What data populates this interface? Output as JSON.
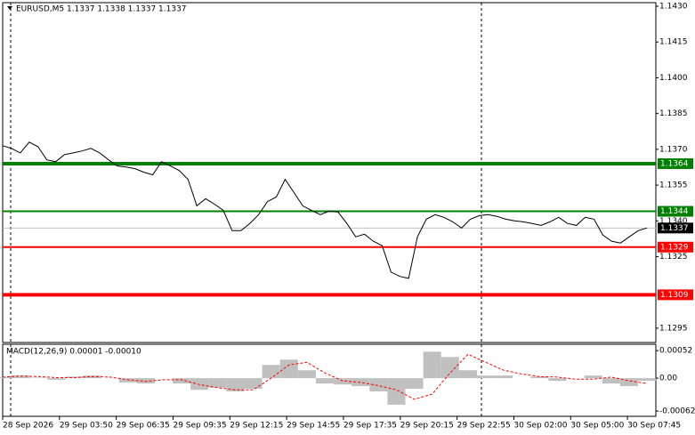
{
  "chart_data": [
    {
      "type": "line",
      "title": "EURUSD,M5  1.1337 1.1338 1.1337 1.1337",
      "color": "#000000",
      "values": [
        1.13715,
        1.13704,
        1.13685,
        1.1373,
        1.13711,
        1.13656,
        1.13648,
        1.13678,
        1.13685,
        1.13693,
        1.13704,
        1.13685,
        1.13656,
        1.1363,
        1.13626,
        1.13619,
        1.13604,
        1.13593,
        1.13648,
        1.1363,
        1.13611,
        1.13574,
        1.13463,
        1.13493,
        1.1347,
        1.13444,
        1.13359,
        1.13359,
        1.13389,
        1.13426,
        1.13481,
        1.135,
        1.13574,
        1.13519,
        1.13463,
        1.13444,
        1.13426,
        1.13441,
        1.13437,
        1.13389,
        1.13333,
        1.13344,
        1.13315,
        1.13296,
        1.13185,
        1.13167,
        1.13159,
        1.13333,
        1.13407,
        1.13426,
        1.13415,
        1.13396,
        1.1337,
        1.13407,
        1.13422,
        1.13426,
        1.13419,
        1.13407,
        1.134,
        1.13396,
        1.13389,
        1.13381,
        1.13396,
        1.13415,
        1.13389,
        1.13381,
        1.13415,
        1.13407,
        1.13341,
        1.13315,
        1.13307,
        1.13333,
        1.13359,
        1.1337
      ],
      "x_labels": [
        "28 Sep 2026",
        "29 Sep 03:50",
        "29 Sep 06:35",
        "29 Sep 09:35",
        "29 Sep 12:15",
        "29 Sep 14:55",
        "29 Sep 17:35",
        "29 Sep 20:15",
        "29 Sep 22:55",
        "30 Sep 02:00",
        "30 Sep 05:00",
        "30 Sep 07:45"
      ],
      "ylim": [
        1.1289,
        1.14315
      ],
      "yticks": [
        {
          "value": 1.143,
          "label": "1.1430"
        },
        {
          "value": 1.1415,
          "label": "1.1415"
        },
        {
          "value": 1.14,
          "label": "1.1400"
        },
        {
          "value": 1.1385,
          "label": "1.1385"
        },
        {
          "value": 1.137,
          "label": "1.1370"
        },
        {
          "value": 1.1355,
          "label": "1.1355"
        },
        {
          "value": 1.134,
          "label": "1.1340"
        },
        {
          "value": 1.1325,
          "label": "1.1325"
        },
        {
          "value": 1.1295,
          "label": "1.1295"
        }
      ],
      "levels": [
        {
          "value": 1.1364,
          "color": "#008000",
          "thick": true
        },
        {
          "value": 1.1344,
          "color": "#008000",
          "thick": false
        },
        {
          "value": 1.1329,
          "color": "#ff0000",
          "thick": false
        },
        {
          "value": 1.1309,
          "color": "#ff0000",
          "thick": true
        }
      ],
      "last_price": 1.1337,
      "last_price_color": "#c0c0c0"
    },
    {
      "type": "macd",
      "title": "MACD(12,26,9) 0.00001 -0.00010",
      "histogram_color": "#c0c0c0",
      "signal_color": "#ff0000",
      "histogram": [
        2e-05,
        5e-05,
        1e-05,
        -3e-05,
        3e-05,
        5e-05,
        0,
        -8e-05,
        -0.0001,
        0,
        -0.0001,
        -0.00022,
        -0.00018,
        -0.00025,
        -0.0002,
        0.00025,
        0.00035,
        0.00015,
        -0.0001,
        -0.00012,
        -0.00015,
        -0.00025,
        -0.0005,
        -0.0002,
        0.0005,
        0.0004,
        0.00015,
        5e-05,
        5e-05,
        0,
        3e-05,
        -5e-05,
        0,
        5e-05,
        -0.0001,
        -0.00015,
        -5e-05
      ],
      "signal": [
        2e-05,
        4e-05,
        3e-05,
        1e-05,
        1e-05,
        3e-05,
        2e-05,
        -3e-05,
        -6e-05,
        -3e-05,
        -3e-05,
        -0.00012,
        -0.00018,
        -0.00022,
        -0.00022,
        0,
        0.00025,
        0.0003,
        0.0001,
        -5e-05,
        -8e-05,
        -0.00014,
        -0.00022,
        -0.0004,
        -0.0003,
        0.0001,
        0.00045,
        0.0003,
        0.00015,
        8e-05,
        3e-05,
        2e-05,
        -2e-05,
        -2e-05,
        2e-05,
        -5e-05,
        -0.0001
      ],
      "ylim": [
        -0.00072,
        0.00064
      ],
      "yticks": [
        0.00052,
        {
          "value": 0,
          "label": "0.00"
        },
        -0.00062
      ]
    }
  ]
}
